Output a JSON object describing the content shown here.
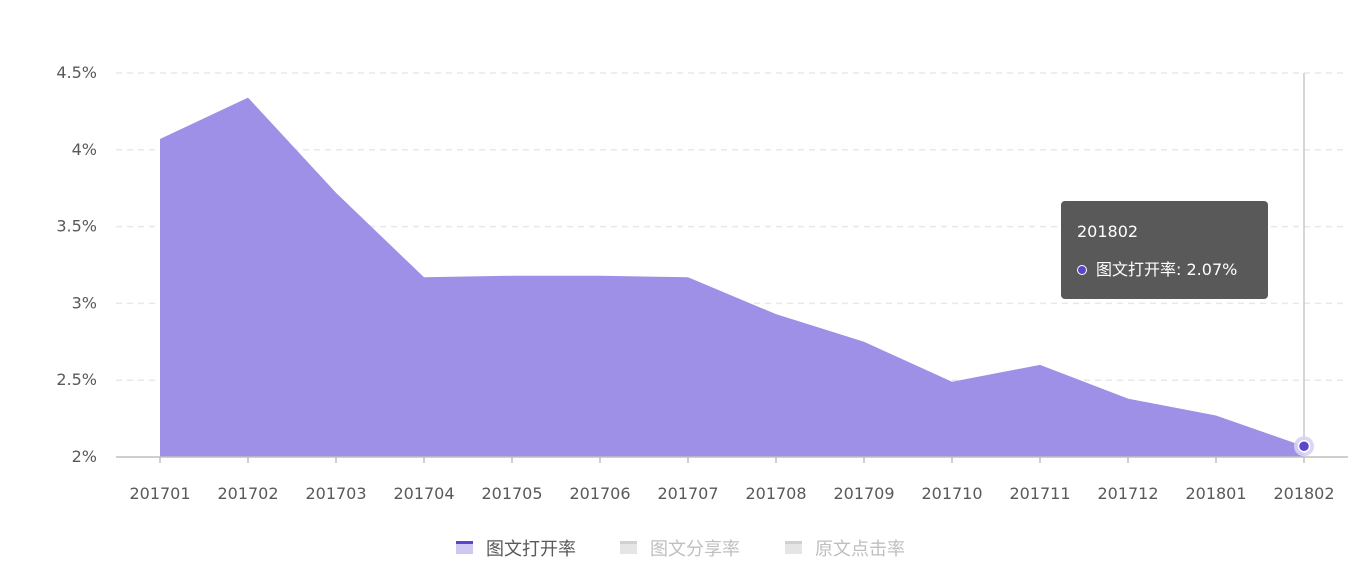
{
  "chart_data": {
    "type": "area",
    "categories": [
      "201701",
      "201702",
      "201703",
      "201704",
      "201705",
      "201706",
      "201707",
      "201708",
      "201709",
      "201710",
      "201711",
      "201712",
      "201801",
      "201802"
    ],
    "series": [
      {
        "name": "图文打开率",
        "values": [
          4.07,
          4.34,
          3.72,
          3.17,
          3.18,
          3.18,
          3.17,
          2.93,
          2.75,
          2.49,
          2.6,
          2.38,
          2.27,
          2.07
        ],
        "visible": true,
        "color": "#9d90e6",
        "line_color": "#5b45cc"
      },
      {
        "name": "图文分享率",
        "visible": false,
        "color": "#e5e5e5"
      },
      {
        "name": "原文点击率",
        "visible": false,
        "color": "#e5e5e5"
      }
    ],
    "y_ticks": [
      "2%",
      "2.5%",
      "3%",
      "3.5%",
      "4%",
      "4.5%"
    ],
    "ylim": [
      2,
      4.5
    ],
    "y_unit": "%",
    "grid": "horizontal dashed",
    "legend_position": "bottom-center",
    "title": "",
    "xlabel": "",
    "ylabel": "",
    "tooltip": {
      "title": "201802",
      "series_name": "图文打开率",
      "value_text": "2.07%",
      "highlighted_category": "201802"
    }
  },
  "colors": {
    "area_fill": "#9d90e6",
    "accent": "#5b45cc",
    "axis_text": "#595959",
    "grid": "#e8e8e8",
    "crosshair": "#c8c8c8",
    "legend_inactive": "#bfbfbf",
    "legend_active": "#595959"
  }
}
